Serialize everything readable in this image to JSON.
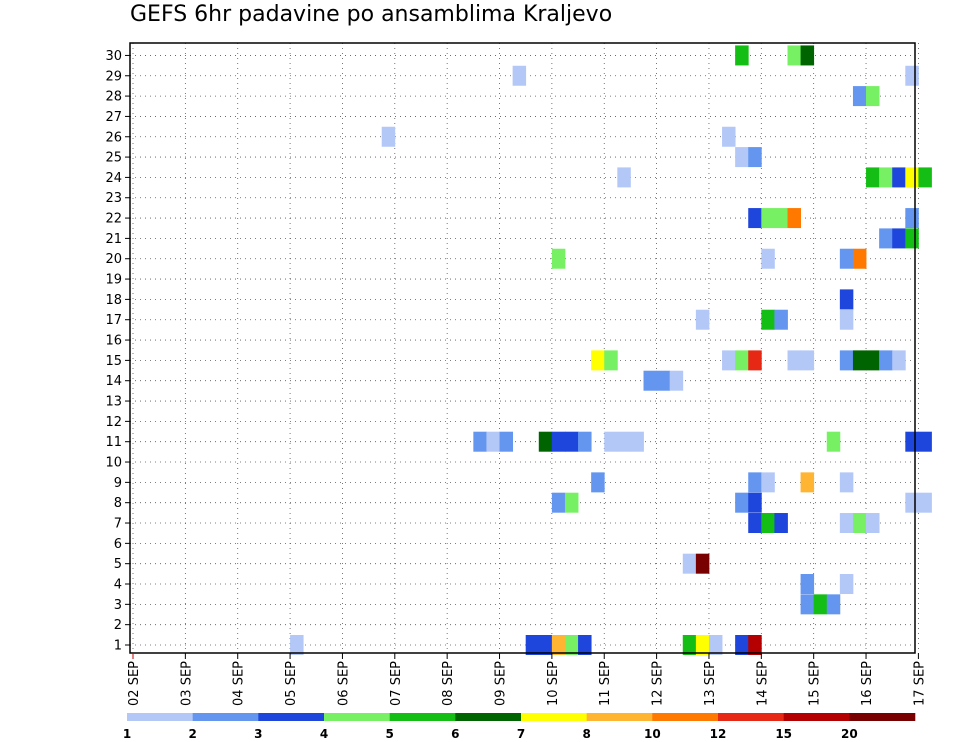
{
  "chart_data": {
    "type": "heatmap",
    "title": "GEFS 6hr padavine po ansamblima Kraljevo",
    "xlabel": "",
    "ylabel": "",
    "y_ticks": [
      "1",
      "2",
      "3",
      "4",
      "5",
      "6",
      "7",
      "8",
      "9",
      "10",
      "11",
      "12",
      "13",
      "14",
      "15",
      "16",
      "17",
      "18",
      "19",
      "20",
      "21",
      "22",
      "23",
      "24",
      "25",
      "26",
      "27",
      "28",
      "29",
      "30"
    ],
    "x_ticks": [
      "02 SEP",
      "03 SEP",
      "04 SEP",
      "05 SEP",
      "06 SEP",
      "07 SEP",
      "08 SEP",
      "09 SEP",
      "10 SEP",
      "11 SEP",
      "12 SEP",
      "13 SEP",
      "14 SEP",
      "15 SEP",
      "16 SEP",
      "17 SEP"
    ],
    "x_unit": "6-hour step (4 steps per day, step 0 = 02 SEP 00Z)",
    "grid": true,
    "legend": {
      "placement": "bottom",
      "labels": [
        "1",
        "2",
        "3",
        "4",
        "5",
        "6",
        "7",
        "8",
        "10",
        "12",
        "15",
        "20"
      ],
      "colors": [
        "#b4c8f8",
        "#6496f0",
        "#1e46dc",
        "#78f064",
        "#14be14",
        "#006400",
        "#ffff00",
        "#ffb432",
        "#ff7800",
        "#e62814",
        "#b40000",
        "#780000"
      ]
    },
    "cells": [
      {
        "member": 30,
        "step": 46,
        "cat": 5
      },
      {
        "member": 30,
        "step": 50,
        "cat": 4
      },
      {
        "member": 30,
        "step": 51,
        "cat": 6
      },
      {
        "member": 29,
        "step": 29,
        "cat": 1
      },
      {
        "member": 29,
        "step": 59,
        "cat": 1
      },
      {
        "member": 28,
        "step": 55,
        "cat": 2
      },
      {
        "member": 28,
        "step": 56,
        "cat": 4
      },
      {
        "member": 26,
        "step": 19,
        "cat": 1
      },
      {
        "member": 26,
        "step": 45,
        "cat": 1
      },
      {
        "member": 25,
        "step": 46,
        "cat": 1
      },
      {
        "member": 25,
        "step": 47,
        "cat": 2
      },
      {
        "member": 24,
        "step": 37,
        "cat": 1
      },
      {
        "member": 24,
        "step": 56,
        "cat": 5
      },
      {
        "member": 24,
        "step": 57,
        "cat": 4
      },
      {
        "member": 24,
        "step": 58,
        "cat": 3
      },
      {
        "member": 24,
        "step": 59,
        "cat": 7
      },
      {
        "member": 24,
        "step": 60,
        "cat": 5
      },
      {
        "member": 22,
        "step": 47,
        "cat": 3
      },
      {
        "member": 22,
        "step": 48,
        "cat": 4
      },
      {
        "member": 22,
        "step": 49,
        "cat": 4
      },
      {
        "member": 22,
        "step": 50,
        "cat": 9
      },
      {
        "member": 22,
        "step": 59,
        "cat": 2
      },
      {
        "member": 21,
        "step": 57,
        "cat": 2
      },
      {
        "member": 21,
        "step": 58,
        "cat": 3
      },
      {
        "member": 21,
        "step": 59,
        "cat": 5
      },
      {
        "member": 20,
        "step": 32,
        "cat": 4
      },
      {
        "member": 20,
        "step": 48,
        "cat": 1
      },
      {
        "member": 20,
        "step": 54,
        "cat": 2
      },
      {
        "member": 20,
        "step": 55,
        "cat": 9
      },
      {
        "member": 18,
        "step": 54,
        "cat": 3
      },
      {
        "member": 17,
        "step": 43,
        "cat": 1
      },
      {
        "member": 17,
        "step": 48,
        "cat": 5
      },
      {
        "member": 17,
        "step": 49,
        "cat": 2
      },
      {
        "member": 17,
        "step": 54,
        "cat": 1
      },
      {
        "member": 15,
        "step": 35,
        "cat": 7
      },
      {
        "member": 15,
        "step": 36,
        "cat": 4
      },
      {
        "member": 15,
        "step": 45,
        "cat": 1
      },
      {
        "member": 15,
        "step": 46,
        "cat": 4
      },
      {
        "member": 15,
        "step": 47,
        "cat": 10
      },
      {
        "member": 15,
        "step": 50,
        "cat": 1
      },
      {
        "member": 15,
        "step": 51,
        "cat": 1
      },
      {
        "member": 15,
        "step": 54,
        "cat": 2
      },
      {
        "member": 15,
        "step": 55,
        "cat": 6
      },
      {
        "member": 15,
        "step": 56,
        "cat": 6
      },
      {
        "member": 15,
        "step": 57,
        "cat": 2
      },
      {
        "member": 15,
        "step": 58,
        "cat": 1
      },
      {
        "member": 14,
        "step": 39,
        "cat": 2
      },
      {
        "member": 14,
        "step": 40,
        "cat": 2
      },
      {
        "member": 14,
        "step": 41,
        "cat": 1
      },
      {
        "member": 11,
        "step": 26,
        "cat": 2
      },
      {
        "member": 11,
        "step": 27,
        "cat": 1
      },
      {
        "member": 11,
        "step": 28,
        "cat": 2
      },
      {
        "member": 11,
        "step": 31,
        "cat": 6
      },
      {
        "member": 11,
        "step": 32,
        "cat": 3
      },
      {
        "member": 11,
        "step": 33,
        "cat": 3
      },
      {
        "member": 11,
        "step": 34,
        "cat": 2
      },
      {
        "member": 11,
        "step": 36,
        "cat": 1
      },
      {
        "member": 11,
        "step": 37,
        "cat": 1
      },
      {
        "member": 11,
        "step": 38,
        "cat": 1
      },
      {
        "member": 11,
        "step": 53,
        "cat": 4
      },
      {
        "member": 11,
        "step": 59,
        "cat": 3
      },
      {
        "member": 11,
        "step": 60,
        "cat": 3
      },
      {
        "member": 9,
        "step": 35,
        "cat": 2
      },
      {
        "member": 9,
        "step": 47,
        "cat": 2
      },
      {
        "member": 9,
        "step": 48,
        "cat": 1
      },
      {
        "member": 9,
        "step": 51,
        "cat": 8
      },
      {
        "member": 9,
        "step": 54,
        "cat": 1
      },
      {
        "member": 8,
        "step": 32,
        "cat": 2
      },
      {
        "member": 8,
        "step": 33,
        "cat": 4
      },
      {
        "member": 8,
        "step": 46,
        "cat": 2
      },
      {
        "member": 8,
        "step": 47,
        "cat": 3
      },
      {
        "member": 8,
        "step": 59,
        "cat": 1
      },
      {
        "member": 8,
        "step": 60,
        "cat": 1
      },
      {
        "member": 7,
        "step": 47,
        "cat": 3
      },
      {
        "member": 7,
        "step": 48,
        "cat": 5
      },
      {
        "member": 7,
        "step": 49,
        "cat": 3
      },
      {
        "member": 7,
        "step": 54,
        "cat": 1
      },
      {
        "member": 7,
        "step": 55,
        "cat": 4
      },
      {
        "member": 7,
        "step": 56,
        "cat": 1
      },
      {
        "member": 5,
        "step": 42,
        "cat": 1
      },
      {
        "member": 5,
        "step": 43,
        "cat": 12
      },
      {
        "member": 4,
        "step": 51,
        "cat": 2
      },
      {
        "member": 4,
        "step": 54,
        "cat": 1
      },
      {
        "member": 3,
        "step": 51,
        "cat": 2
      },
      {
        "member": 3,
        "step": 52,
        "cat": 5
      },
      {
        "member": 3,
        "step": 53,
        "cat": 2
      },
      {
        "member": 1,
        "step": 12,
        "cat": 1
      },
      {
        "member": 1,
        "step": 30,
        "cat": 3
      },
      {
        "member": 1,
        "step": 31,
        "cat": 3
      },
      {
        "member": 1,
        "step": 32,
        "cat": 8
      },
      {
        "member": 1,
        "step": 33,
        "cat": 4
      },
      {
        "member": 1,
        "step": 34,
        "cat": 3
      },
      {
        "member": 1,
        "step": 42,
        "cat": 5
      },
      {
        "member": 1,
        "step": 43,
        "cat": 7
      },
      {
        "member": 1,
        "step": 44,
        "cat": 1
      },
      {
        "member": 1,
        "step": 46,
        "cat": 3
      },
      {
        "member": 1,
        "step": 47,
        "cat": 11
      }
    ]
  }
}
